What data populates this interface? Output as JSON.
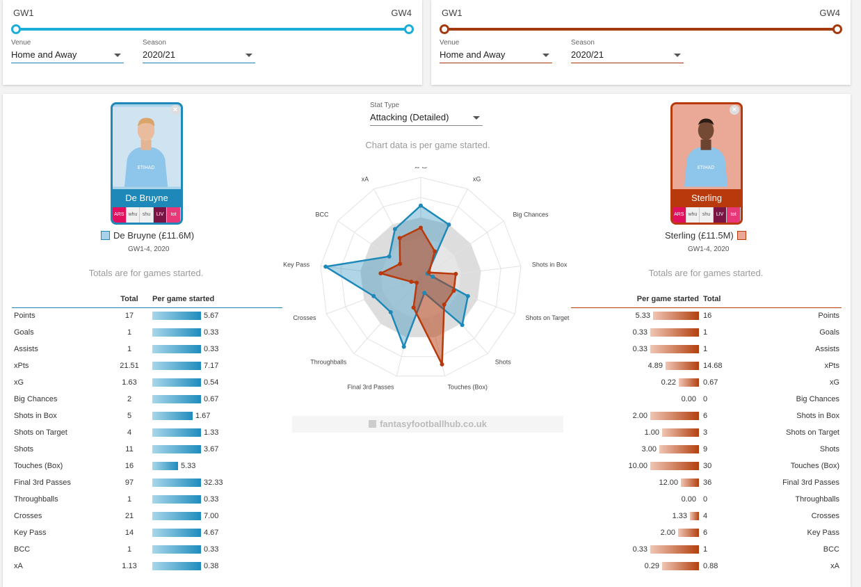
{
  "filters": {
    "left": {
      "gw_start": "GW1",
      "gw_end": "GW4",
      "venue_label": "Venue",
      "venue": "Home and Away",
      "season_label": "Season",
      "season": "2020/21",
      "color": "#1aaed8"
    },
    "right": {
      "gw_start": "GW1",
      "gw_end": "GW4",
      "venue_label": "Venue",
      "venue": "Home and Away",
      "season_label": "Season",
      "season": "2020/21",
      "color": "#a63a0f"
    }
  },
  "stat_type": {
    "label": "Stat Type",
    "value": "Attacking (Detailed)"
  },
  "chart_note": "Chart data is per game started.",
  "watermark": "fantasyfootballhub.co.uk",
  "players": {
    "left": {
      "name": "De Bruyne",
      "legend": "De Bruyne (£11.6M)",
      "range": "GW1-4, 2020",
      "totals_note": "Totals are for games started.",
      "fixtures": [
        "ARS",
        "whu",
        "shu",
        "LIV",
        "tot"
      ],
      "color": "#1e88b8",
      "swatch": "#a9d3ea"
    },
    "right": {
      "name": "Sterling",
      "legend": "Sterling (£11.5M)",
      "range": "GW1-4, 2020",
      "totals_note": "Totals are for games started.",
      "fixtures": [
        "ARS",
        "whu",
        "shu",
        "LIV",
        "tot"
      ],
      "color": "#b83a0c",
      "swatch": "#e9a996"
    }
  },
  "table_headers": {
    "total": "Total",
    "per_game": "Per game started"
  },
  "stats": [
    {
      "label": "Points",
      "l_total": "17",
      "l_pg": "5.67",
      "l_pgn": 5.67,
      "r_total": "16",
      "r_pg": "5.33",
      "r_pgn": 5.33
    },
    {
      "label": "Goals",
      "l_total": "1",
      "l_pg": "0.33",
      "l_pgn": 0.33,
      "r_total": "1",
      "r_pg": "0.33",
      "r_pgn": 0.33
    },
    {
      "label": "Assists",
      "l_total": "1",
      "l_pg": "0.33",
      "l_pgn": 0.33,
      "r_total": "1",
      "r_pg": "0.33",
      "r_pgn": 0.33
    },
    {
      "label": "xPts",
      "l_total": "21.51",
      "l_pg": "7.17",
      "l_pgn": 7.17,
      "r_total": "14.68",
      "r_pg": "4.89",
      "r_pgn": 4.89
    },
    {
      "label": "xG",
      "l_total": "1.63",
      "l_pg": "0.54",
      "l_pgn": 0.54,
      "r_total": "0.67",
      "r_pg": "0.22",
      "r_pgn": 0.22
    },
    {
      "label": "Big Chances",
      "l_total": "2",
      "l_pg": "0.67",
      "l_pgn": 0.67,
      "r_total": "0",
      "r_pg": "0.00",
      "r_pgn": 0
    },
    {
      "label": "Shots in Box",
      "l_total": "5",
      "l_pg": "1.67",
      "l_pgn": 1.67,
      "r_total": "6",
      "r_pg": "2.00",
      "r_pgn": 2.0
    },
    {
      "label": "Shots on Target",
      "l_total": "4",
      "l_pg": "1.33",
      "l_pgn": 1.33,
      "r_total": "3",
      "r_pg": "1.00",
      "r_pgn": 1.0
    },
    {
      "label": "Shots",
      "l_total": "11",
      "l_pg": "3.67",
      "l_pgn": 3.67,
      "r_total": "9",
      "r_pg": "3.00",
      "r_pgn": 3.0
    },
    {
      "label": "Touches (Box)",
      "l_total": "16",
      "l_pg": "5.33",
      "l_pgn": 5.33,
      "r_total": "30",
      "r_pg": "10.00",
      "r_pgn": 10.0
    },
    {
      "label": "Final 3rd Passes",
      "l_total": "97",
      "l_pg": "32.33",
      "l_pgn": 32.33,
      "r_total": "36",
      "r_pg": "12.00",
      "r_pgn": 12.0
    },
    {
      "label": "Throughballs",
      "l_total": "1",
      "l_pg": "0.33",
      "l_pgn": 0.33,
      "r_total": "0",
      "r_pg": "0.00",
      "r_pgn": 0
    },
    {
      "label": "Crosses",
      "l_total": "21",
      "l_pg": "7.00",
      "l_pgn": 7.0,
      "r_total": "4",
      "r_pg": "1.33",
      "r_pgn": 1.33
    },
    {
      "label": "Key Pass",
      "l_total": "14",
      "l_pg": "4.67",
      "l_pgn": 4.67,
      "r_total": "6",
      "r_pg": "2.00",
      "r_pgn": 2.0
    },
    {
      "label": "BCC",
      "l_total": "1",
      "l_pg": "0.33",
      "l_pgn": 0.33,
      "r_total": "1",
      "r_pg": "0.33",
      "r_pgn": 0.33
    },
    {
      "label": "xA",
      "l_total": "1.13",
      "l_pg": "0.38",
      "l_pgn": 0.38,
      "r_total": "0.88",
      "r_pg": "0.29",
      "r_pgn": 0.29
    }
  ],
  "chart_data": {
    "type": "radar",
    "axes": [
      "xPts",
      "xG",
      "Big Chances",
      "Shots in Box",
      "Shots on Target",
      "Shots",
      "Touches (Box)",
      "Final 3rd Passes",
      "Throughballs",
      "Crosses",
      "Key Pass",
      "BCC",
      "xA"
    ],
    "series": [
      {
        "name": "De Bruyne (£11.6M)",
        "values": [
          0.72,
          0.6,
          0.08,
          0.12,
          0.5,
          0.62,
          0.15,
          0.7,
          0.45,
          0.5,
          0.95,
          0.38,
          0.55
        ]
      },
      {
        "name": "Sterling (£11.5M)",
        "values": [
          0.5,
          0.3,
          0.1,
          0.35,
          0.35,
          0.35,
          0.88,
          0.3,
          0.06,
          0.1,
          0.4,
          0.25,
          0.45
        ]
      }
    ]
  }
}
